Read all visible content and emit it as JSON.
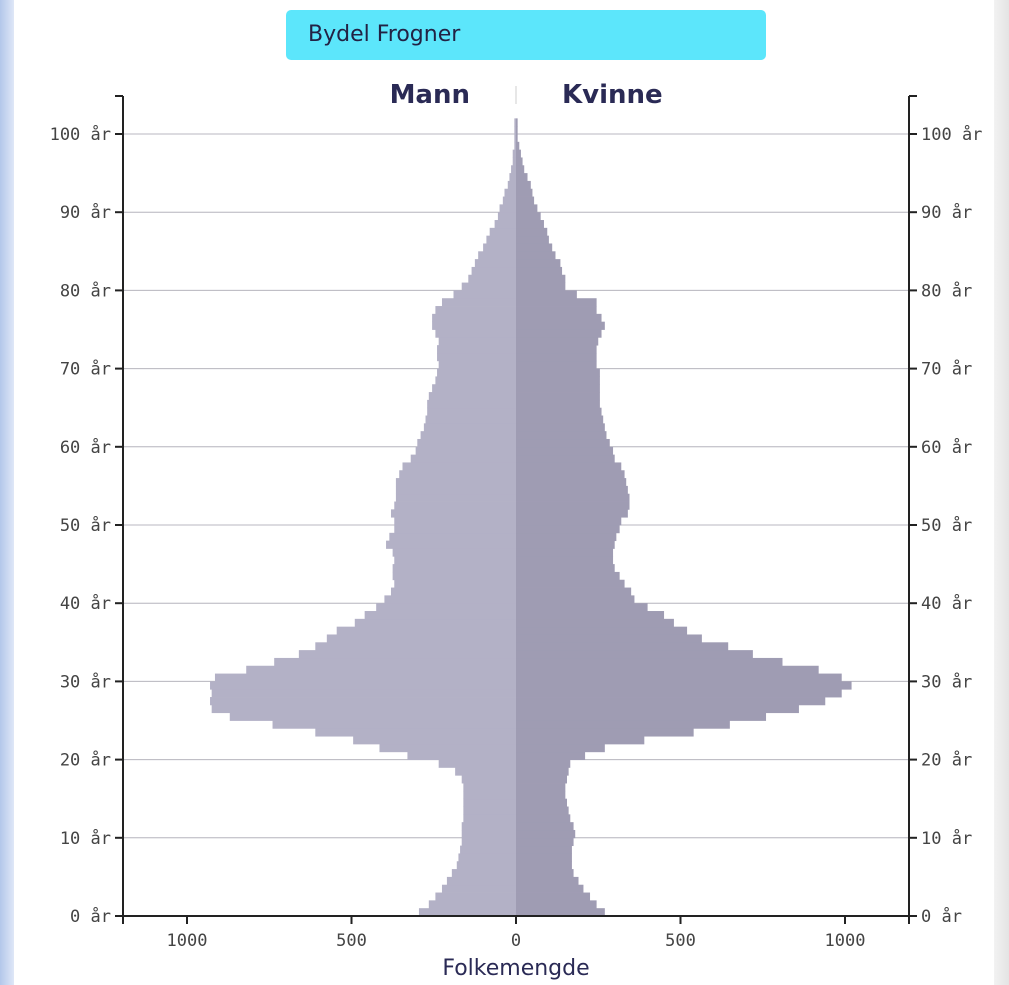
{
  "area_selector": {
    "label": "Bydel Frogner"
  },
  "chart_data": {
    "type": "bar",
    "orientation": "horizontal",
    "subtype": "population-pyramid",
    "side_labels": {
      "left": "Mann",
      "right": "Kvinne"
    },
    "xlabel": "Folkemengde",
    "xlim": [
      -1200,
      1200
    ],
    "ylim": [
      0,
      105
    ],
    "x_ticks": [
      {
        "value": -1000,
        "label": "1000"
      },
      {
        "value": -500,
        "label": "500"
      },
      {
        "value": 0,
        "label": "0"
      },
      {
        "value": 500,
        "label": "500"
      },
      {
        "value": 1000,
        "label": "1000"
      }
    ],
    "y_ticks": [
      {
        "value": 0,
        "label": "0 år"
      },
      {
        "value": 10,
        "label": "10 år"
      },
      {
        "value": 20,
        "label": "20 år"
      },
      {
        "value": 30,
        "label": "30 år"
      },
      {
        "value": 40,
        "label": "40 år"
      },
      {
        "value": 50,
        "label": "50 år"
      },
      {
        "value": 60,
        "label": "60 år"
      },
      {
        "value": 70,
        "label": "70 år"
      },
      {
        "value": 80,
        "label": "80 år"
      },
      {
        "value": 90,
        "label": "90 år"
      },
      {
        "value": 100,
        "label": "100 år"
      }
    ],
    "grid": true,
    "colors": {
      "men": "#b3b1c6",
      "women": "#9f9cb3",
      "grid": "#d0d0d0",
      "axis": "#222222"
    },
    "ages": [
      0,
      1,
      2,
      3,
      4,
      5,
      6,
      7,
      8,
      9,
      10,
      11,
      12,
      13,
      14,
      15,
      16,
      17,
      18,
      19,
      20,
      21,
      22,
      23,
      24,
      25,
      26,
      27,
      28,
      29,
      30,
      31,
      32,
      33,
      34,
      35,
      36,
      37,
      38,
      39,
      40,
      41,
      42,
      43,
      44,
      45,
      46,
      47,
      48,
      49,
      50,
      51,
      52,
      53,
      54,
      55,
      56,
      57,
      58,
      59,
      60,
      61,
      62,
      63,
      64,
      65,
      66,
      67,
      68,
      69,
      70,
      71,
      72,
      73,
      74,
      75,
      76,
      77,
      78,
      79,
      80,
      81,
      82,
      83,
      84,
      85,
      86,
      87,
      88,
      89,
      90,
      91,
      92,
      93,
      94,
      95,
      96,
      97,
      98,
      99,
      100,
      101
    ],
    "series": [
      {
        "name": "Mann",
        "values": [
          295,
          265,
          245,
          225,
          210,
          195,
          180,
          175,
          170,
          165,
          165,
          165,
          160,
          160,
          160,
          160,
          160,
          165,
          185,
          235,
          330,
          415,
          495,
          610,
          740,
          870,
          925,
          930,
          925,
          930,
          915,
          820,
          735,
          660,
          610,
          575,
          545,
          490,
          460,
          425,
          400,
          380,
          370,
          375,
          375,
          370,
          375,
          395,
          385,
          370,
          370,
          380,
          370,
          365,
          365,
          365,
          355,
          345,
          320,
          305,
          300,
          290,
          280,
          275,
          270,
          270,
          265,
          255,
          245,
          240,
          235,
          240,
          240,
          235,
          245,
          255,
          255,
          245,
          225,
          190,
          165,
          145,
          135,
          125,
          115,
          100,
          90,
          80,
          65,
          55,
          50,
          40,
          35,
          25,
          20,
          15,
          10,
          10,
          5,
          5,
          5,
          5
        ]
      },
      {
        "name": "Kvinne",
        "values": [
          270,
          245,
          225,
          205,
          190,
          175,
          170,
          170,
          170,
          175,
          180,
          175,
          165,
          160,
          155,
          150,
          150,
          155,
          160,
          165,
          210,
          270,
          390,
          540,
          650,
          760,
          860,
          940,
          990,
          1020,
          990,
          920,
          810,
          720,
          645,
          565,
          520,
          480,
          450,
          400,
          360,
          350,
          330,
          315,
          300,
          295,
          295,
          300,
          305,
          315,
          320,
          340,
          345,
          345,
          340,
          335,
          330,
          320,
          300,
          295,
          285,
          275,
          270,
          265,
          260,
          255,
          255,
          255,
          255,
          255,
          245,
          245,
          245,
          250,
          260,
          270,
          260,
          245,
          245,
          185,
          150,
          150,
          140,
          135,
          120,
          110,
          100,
          95,
          85,
          75,
          65,
          55,
          50,
          45,
          35,
          25,
          20,
          15,
          10,
          5,
          5,
          5
        ]
      }
    ]
  }
}
